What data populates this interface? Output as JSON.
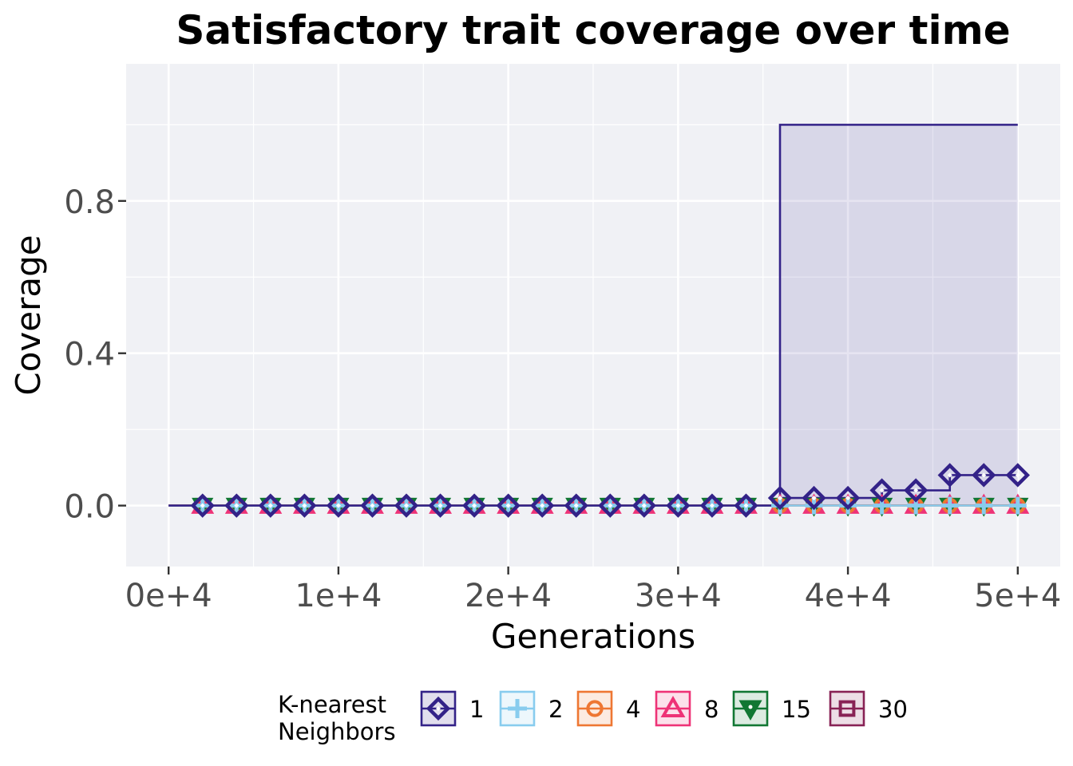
{
  "chart_data": {
    "type": "line",
    "title": "Satisfactory trait coverage over time",
    "xlabel": "Generations",
    "ylabel": "Coverage",
    "xlim": [
      -2500,
      52500
    ],
    "ylim": [
      -0.16,
      1.16
    ],
    "x_ticks": [
      0,
      10000,
      20000,
      30000,
      40000,
      50000
    ],
    "x_tick_labels": [
      "0e+4",
      "1e+4",
      "2e+4",
      "3e+4",
      "4e+4",
      "5e+4"
    ],
    "y_ticks": [
      0.0,
      0.4,
      0.8
    ],
    "y_tick_labels": [
      "0.0",
      "0.4",
      "0.8"
    ],
    "grid": true,
    "legend": {
      "title_lines": [
        "K-nearest",
        "Neighbors"
      ],
      "position": "bottom"
    },
    "x": [
      0,
      2000,
      4000,
      6000,
      8000,
      10000,
      12000,
      14000,
      16000,
      18000,
      20000,
      22000,
      24000,
      26000,
      28000,
      30000,
      32000,
      34000,
      36000,
      38000,
      40000,
      42000,
      44000,
      46000,
      48000,
      50000
    ],
    "series": [
      {
        "name": "1",
        "color": "#332288",
        "marker": "diamond",
        "values": [
          0,
          0,
          0,
          0,
          0,
          0,
          0,
          0,
          0,
          0,
          0,
          0,
          0,
          0,
          0,
          0,
          0,
          0,
          0.02,
          0.02,
          0.02,
          0.04,
          0.04,
          0.08,
          0.08,
          0.08
        ],
        "upper": [
          0,
          0,
          0,
          0,
          0,
          0,
          0,
          0,
          0,
          0,
          0,
          0,
          0,
          0,
          0,
          0,
          0,
          0,
          1,
          1,
          1,
          1,
          1,
          1,
          1,
          1
        ],
        "lower": [
          0,
          0,
          0,
          0,
          0,
          0,
          0,
          0,
          0,
          0,
          0,
          0,
          0,
          0,
          0,
          0,
          0,
          0,
          0,
          0,
          0,
          0,
          0,
          0,
          0,
          0
        ]
      },
      {
        "name": "2",
        "color": "#88CCEE",
        "marker": "plus",
        "values": [
          0,
          0,
          0,
          0,
          0,
          0,
          0,
          0,
          0,
          0,
          0,
          0,
          0,
          0,
          0,
          0,
          0,
          0,
          0,
          0,
          0,
          0,
          0,
          0,
          0,
          0
        ]
      },
      {
        "name": "4",
        "color": "#EE7733",
        "marker": "circle",
        "values": [
          0,
          0,
          0,
          0,
          0,
          0,
          0,
          0,
          0,
          0,
          0,
          0,
          0,
          0,
          0,
          0,
          0,
          0,
          0,
          0,
          0,
          0,
          0,
          0,
          0,
          0
        ]
      },
      {
        "name": "8",
        "color": "#EE3377",
        "marker": "triangle",
        "values": [
          0,
          0,
          0,
          0,
          0,
          0,
          0,
          0,
          0,
          0,
          0,
          0,
          0,
          0,
          0,
          0,
          0,
          0,
          0,
          0,
          0,
          0,
          0,
          0,
          0,
          0
        ]
      },
      {
        "name": "15",
        "color": "#117733",
        "marker": "triangle-down",
        "values": [
          0,
          0,
          0,
          0,
          0,
          0,
          0,
          0,
          0,
          0,
          0,
          0,
          0,
          0,
          0,
          0,
          0,
          0,
          0,
          0,
          0,
          0,
          0,
          0,
          0,
          0
        ]
      },
      {
        "name": "30",
        "color": "#882255",
        "marker": "square",
        "values": [
          0,
          0,
          0,
          0,
          0,
          0,
          0,
          0,
          0,
          0,
          0,
          0,
          0,
          0,
          0,
          0,
          0,
          0,
          0,
          0,
          0,
          0,
          0,
          0,
          0,
          0
        ]
      }
    ]
  }
}
